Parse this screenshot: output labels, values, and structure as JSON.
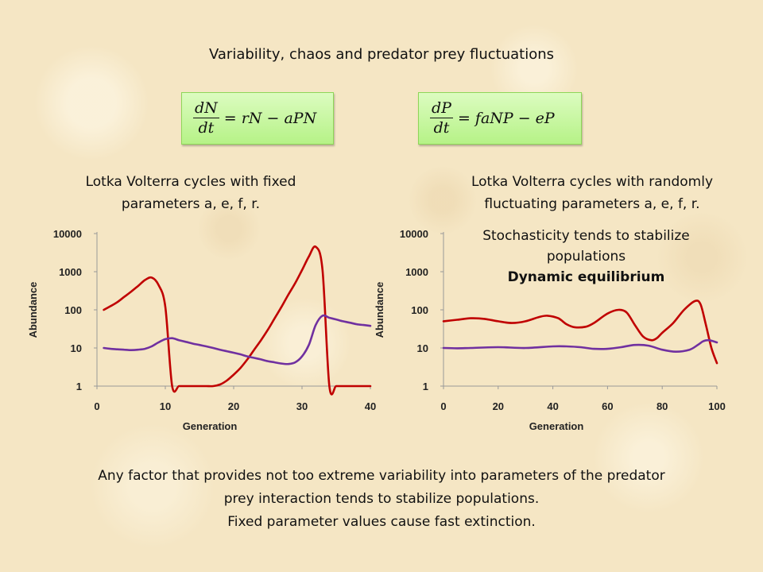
{
  "title": "Variability, chaos and predator prey fluctuations",
  "equations": {
    "prey": {
      "num": "dN",
      "den": "dt",
      "rhs": "= rN − aPN"
    },
    "predator": {
      "num": "dP",
      "den": "dt",
      "rhs": "= faNP − eP"
    }
  },
  "captions": {
    "left_line1": "Lotka Volterra cycles with fixed",
    "left_line2": "parameters a, e, f, r.",
    "right_line1": "Lotka Volterra cycles with randomly",
    "right_line2": "fluctuating parameters a, e, f, r."
  },
  "note": {
    "line1": "Stochasticity tends to stabilize",
    "line2": "populations",
    "line3": "Dynamic equilibrium"
  },
  "footer": {
    "line1": "Any factor that provides not too extreme variability into parameters of the predator",
    "line2": "prey interaction tends to stabilize populations.",
    "line3": "Fixed parameter values cause fast extinction."
  },
  "colors": {
    "prey": "#c00000",
    "predator": "#7030a0"
  },
  "chart_data": [
    {
      "type": "line",
      "xlabel": "Generation",
      "ylabel": "Abundance",
      "y_scale": "log",
      "xlim": [
        0,
        40
      ],
      "ylim": [
        1,
        10000
      ],
      "xticks": [
        "0",
        "10",
        "20",
        "30",
        "40"
      ],
      "yticks": [
        "1",
        "10",
        "100",
        "1000",
        "10000"
      ],
      "series": [
        {
          "color": "#c00000",
          "x": [
            1,
            2,
            3,
            4,
            5,
            6,
            7,
            8,
            9,
            10,
            11,
            12,
            13,
            14,
            15,
            16,
            17,
            18,
            19,
            20,
            21,
            22,
            23,
            24,
            25,
            26,
            27,
            28,
            29,
            30,
            31,
            32,
            33,
            34,
            35,
            36,
            37,
            38,
            39,
            40
          ],
          "y": [
            100,
            125,
            160,
            220,
            300,
            420,
            600,
            700,
            450,
            120,
            1,
            1,
            1,
            1,
            1,
            1,
            1,
            1.1,
            1.4,
            2,
            3,
            5,
            9,
            16,
            30,
            60,
            120,
            250,
            500,
            1100,
            2500,
            4500,
            1100,
            1,
            1,
            1,
            1,
            1,
            1,
            1
          ]
        },
        {
          "color": "#7030a0",
          "x": [
            1,
            2,
            3,
            4,
            5,
            6,
            7,
            8,
            9,
            10,
            11,
            12,
            13,
            14,
            15,
            16,
            17,
            18,
            19,
            20,
            21,
            22,
            23,
            24,
            25,
            26,
            27,
            28,
            29,
            30,
            31,
            32,
            33,
            34,
            35,
            36,
            37,
            38,
            39,
            40
          ],
          "y": [
            10,
            9.5,
            9.2,
            9,
            8.8,
            9,
            9.5,
            11,
            14,
            17,
            18,
            16,
            14.5,
            13,
            12,
            11,
            10,
            9,
            8.2,
            7.5,
            6.8,
            6,
            5.5,
            5,
            4.5,
            4.2,
            3.9,
            3.8,
            4.2,
            6,
            12,
            40,
            70,
            62,
            56,
            50,
            46,
            42,
            40,
            38
          ]
        }
      ]
    },
    {
      "type": "line",
      "xlabel": "Generation",
      "ylabel": "Abundance",
      "y_scale": "log",
      "xlim": [
        0,
        100
      ],
      "ylim": [
        1,
        10000
      ],
      "xticks": [
        "0",
        "20",
        "40",
        "60",
        "80",
        "100"
      ],
      "yticks": [
        "1",
        "10",
        "100",
        "1000",
        "10000"
      ],
      "series": [
        {
          "color": "#c00000",
          "x": [
            0,
            5,
            10,
            15,
            20,
            25,
            30,
            35,
            38,
            42,
            45,
            48,
            52,
            55,
            60,
            64,
            67,
            70,
            73,
            76,
            78,
            80,
            84,
            88,
            92,
            94,
            96,
            98,
            100
          ],
          "y": [
            50,
            55,
            60,
            58,
            50,
            45,
            50,
            65,
            70,
            60,
            42,
            35,
            36,
            45,
            80,
            100,
            85,
            40,
            20,
            16,
            18,
            25,
            45,
            100,
            170,
            140,
            40,
            10,
            4
          ]
        },
        {
          "color": "#7030a0",
          "x": [
            0,
            5,
            10,
            20,
            30,
            40,
            45,
            50,
            55,
            60,
            65,
            70,
            75,
            80,
            85,
            90,
            93,
            95,
            97,
            100
          ],
          "y": [
            10,
            9.8,
            10,
            10.5,
            10,
            11,
            11,
            10.5,
            9.5,
            9.5,
            10.5,
            12,
            11.5,
            9,
            8,
            9,
            12,
            15,
            16,
            14
          ]
        }
      ]
    }
  ]
}
